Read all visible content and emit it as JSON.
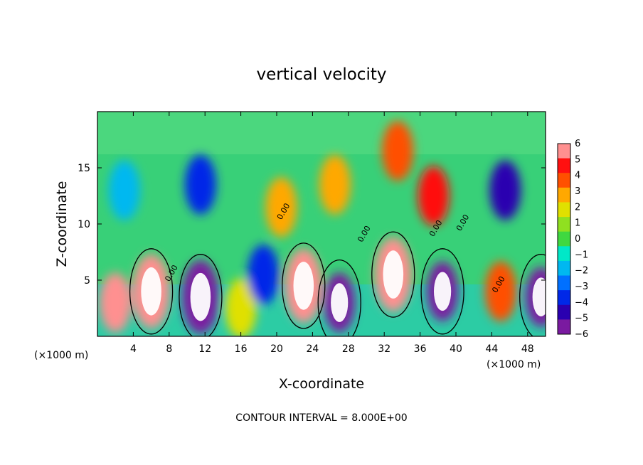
{
  "chart_data": {
    "type": "heatmap",
    "title": "vertical velocity",
    "xlabel": "X-coordinate",
    "ylabel": "Z-coordinate",
    "x_unit": "(×1000 m)",
    "x_unit_right": "(×1000 m)",
    "footer": "CONTOUR INTERVAL = 8.000E+00",
    "xlim": [
      0,
      50
    ],
    "ylim": [
      0,
      20
    ],
    "x_ticks": [
      4,
      8,
      12,
      16,
      20,
      24,
      28,
      32,
      36,
      40,
      44,
      48
    ],
    "y_ticks": [
      5,
      10,
      15
    ],
    "colorbar": {
      "ticks": [
        "6",
        "5",
        "4",
        "3",
        "2",
        "1",
        "0",
        "−1",
        "−2",
        "−3",
        "−4",
        "−5",
        "−6"
      ],
      "min": -6,
      "max": 6,
      "colors": [
        "#7a1aa0",
        "#2a00b0",
        "#0028e8",
        "#0070ff",
        "#00b8f0",
        "#00e8c8",
        "#40d840",
        "#90e020",
        "#e0e000",
        "#ffa800",
        "#ff5000",
        "#ff1010",
        "#ff9090"
      ]
    },
    "contour_labels": [
      "0.00",
      "0.00",
      "0.00",
      "0.00",
      "0.00",
      "0.00"
    ],
    "features": [
      {
        "x": 2.0,
        "z": 3.0,
        "w": 6
      },
      {
        "x": 6.0,
        "z": 4.0,
        "w": 10
      },
      {
        "x": 11.5,
        "z": 3.5,
        "w": -10
      },
      {
        "x": 16.0,
        "z": 2.5,
        "w": 2
      },
      {
        "x": 18.5,
        "z": 5.5,
        "w": -4
      },
      {
        "x": 23.0,
        "z": 4.5,
        "w": 9
      },
      {
        "x": 27.0,
        "z": 3.0,
        "w": -8
      },
      {
        "x": 33.0,
        "z": 5.5,
        "w": 12
      },
      {
        "x": 38.5,
        "z": 4.0,
        "w": -8
      },
      {
        "x": 45.0,
        "z": 4.0,
        "w": 4
      },
      {
        "x": 49.5,
        "z": 3.5,
        "w": -8
      },
      {
        "x": 11.5,
        "z": 13.5,
        "w": -4
      },
      {
        "x": 20.5,
        "z": 11.5,
        "w": 3
      },
      {
        "x": 26.5,
        "z": 13.5,
        "w": 3
      },
      {
        "x": 33.5,
        "z": 16.5,
        "w": 4
      },
      {
        "x": 37.5,
        "z": 12.5,
        "w": 5
      },
      {
        "x": 45.5,
        "z": 13.0,
        "w": -5
      },
      {
        "x": 3.0,
        "z": 13.0,
        "w": -2
      }
    ]
  }
}
